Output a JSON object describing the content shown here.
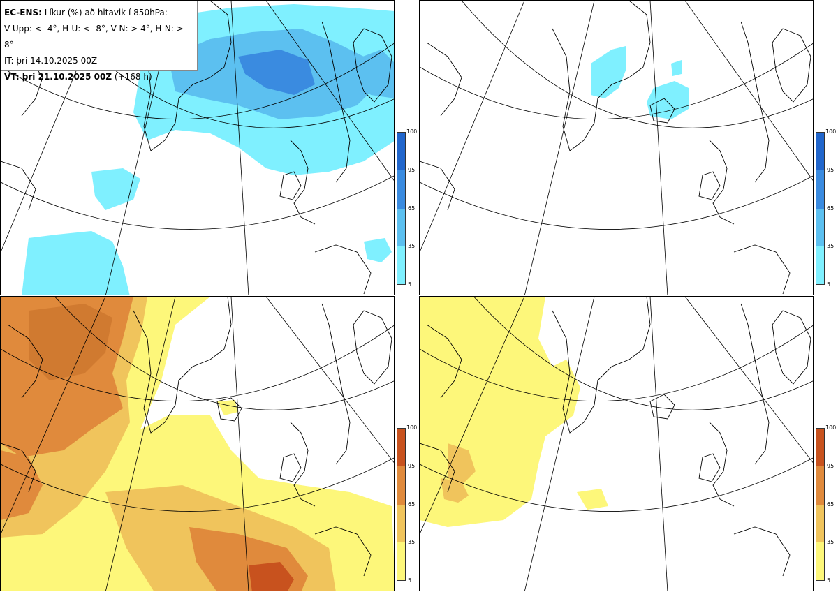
{
  "info": {
    "model": "EC-ENS:",
    "title": "Líkur (%) að hitavik í 850hPa:",
    "thresholds": "V-Upp: < -4°, H-U: < -8°, V-N: > 4°, H-N: > 8°",
    "init_time": "IT: þri 14.10.2025 00Z",
    "valid_label": "VT: þri 21.10.2025 00Z",
    "lead": "(+168 h)"
  },
  "colorbar": {
    "ticks": [
      "100",
      "95",
      "65",
      "35",
      "5"
    ],
    "cold_colors": [
      "#2166cc",
      "#3a8be0",
      "#5cc0f0",
      "#7ff0ff"
    ],
    "warm_colors": [
      "#c8521e",
      "#e08a3c",
      "#f0c45c",
      "#fdf77a"
    ]
  }
}
